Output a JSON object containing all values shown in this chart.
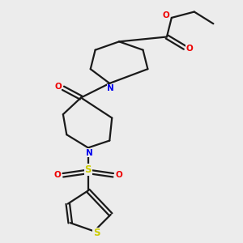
{
  "bg_color": "#ececec",
  "bond_color": "#1a1a1a",
  "nitrogen_color": "#0000ee",
  "oxygen_color": "#ee0000",
  "sulfur_color": "#cccc00",
  "lw": 1.6,
  "dbo": 0.09,
  "xlim": [
    0,
    10
  ],
  "ylim": [
    0,
    10
  ]
}
